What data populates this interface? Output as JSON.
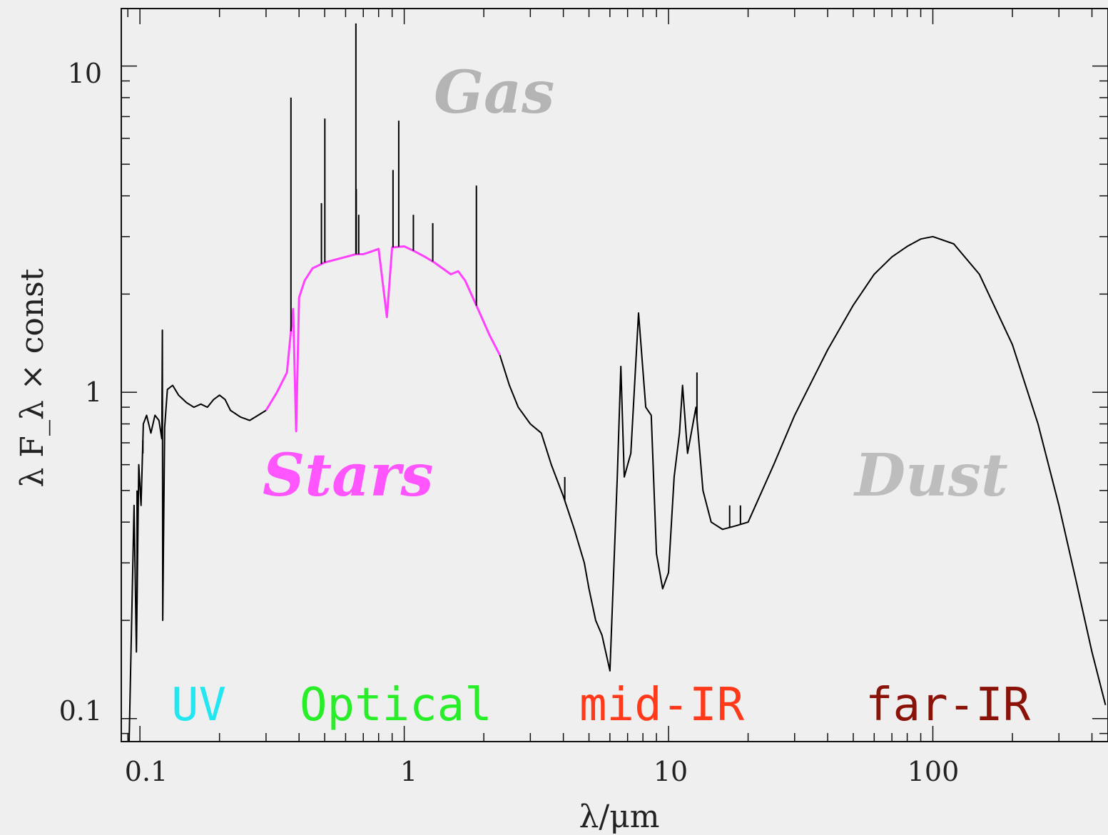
{
  "chart_data": {
    "type": "line",
    "xlabel": "λ/μm",
    "ylabel": "λ F_λ × const",
    "xscale": "log",
    "yscale": "log",
    "xlim": [
      0.085,
      460
    ],
    "ylim": [
      0.085,
      15
    ],
    "grid": false,
    "x_ticks": [
      {
        "value": 0.1,
        "label": "0.1"
      },
      {
        "value": 1,
        "label": "1"
      },
      {
        "value": 10,
        "label": "10"
      },
      {
        "value": 100,
        "label": "100"
      }
    ],
    "y_ticks": [
      {
        "value": 0.1,
        "label": "0.1"
      },
      {
        "value": 1,
        "label": "1"
      },
      {
        "value": 10,
        "label": "10"
      }
    ],
    "series": [
      {
        "name": "",
        "color": "#000000",
        "points": [
          [
            0.091,
            0.085
          ],
          [
            0.095,
            0.45
          ],
          [
            0.097,
            0.16
          ],
          [
            0.099,
            0.6
          ],
          [
            0.101,
            0.45
          ],
          [
            0.103,
            0.8
          ],
          [
            0.106,
            0.85
          ],
          [
            0.11,
            0.75
          ],
          [
            0.114,
            0.85
          ],
          [
            0.118,
            0.82
          ],
          [
            0.121,
            0.72
          ],
          [
            0.1216,
            1.55
          ],
          [
            0.122,
            0.2
          ],
          [
            0.124,
            0.78
          ],
          [
            0.127,
            1.02
          ],
          [
            0.133,
            1.05
          ],
          [
            0.14,
            0.98
          ],
          [
            0.15,
            0.93
          ],
          [
            0.16,
            0.9
          ],
          [
            0.17,
            0.92
          ],
          [
            0.18,
            0.9
          ],
          [
            0.19,
            0.95
          ],
          [
            0.2,
            0.98
          ],
          [
            0.21,
            0.95
          ],
          [
            0.22,
            0.88
          ],
          [
            0.24,
            0.84
          ],
          [
            0.26,
            0.82
          ],
          [
            0.28,
            0.85
          ],
          [
            0.3,
            0.88
          ]
        ]
      },
      {
        "name": "",
        "color": "#ff40ff",
        "points": [
          [
            0.3,
            0.88
          ],
          [
            0.33,
            1.0
          ],
          [
            0.36,
            1.15
          ],
          [
            0.37,
            1.45
          ],
          [
            0.38,
            1.8
          ],
          [
            0.39,
            0.76
          ],
          [
            0.4,
            1.95
          ],
          [
            0.42,
            2.2
          ],
          [
            0.45,
            2.4
          ],
          [
            0.5,
            2.5
          ],
          [
            0.55,
            2.55
          ],
          [
            0.6,
            2.6
          ],
          [
            0.656,
            2.65
          ],
          [
            0.7,
            2.65
          ],
          [
            0.75,
            2.7
          ],
          [
            0.8,
            2.75
          ],
          [
            0.86,
            1.7
          ],
          [
            0.9,
            2.78
          ],
          [
            1.0,
            2.8
          ],
          [
            1.1,
            2.7
          ],
          [
            1.2,
            2.6
          ],
          [
            1.3,
            2.5
          ],
          [
            1.5,
            2.3
          ],
          [
            1.6,
            2.35
          ],
          [
            1.7,
            2.2
          ],
          [
            1.9,
            1.8
          ],
          [
            2.1,
            1.5
          ],
          [
            2.3,
            1.3
          ]
        ]
      },
      {
        "name": "",
        "color": "#000000",
        "points": [
          [
            2.3,
            1.3
          ],
          [
            2.5,
            1.05
          ],
          [
            2.7,
            0.9
          ],
          [
            3.0,
            0.8
          ],
          [
            3.3,
            0.75
          ],
          [
            3.6,
            0.6
          ],
          [
            4.0,
            0.48
          ],
          [
            4.4,
            0.38
          ],
          [
            4.8,
            0.3
          ],
          [
            5.0,
            0.25
          ],
          [
            5.3,
            0.2
          ],
          [
            5.6,
            0.18
          ],
          [
            6.0,
            0.14
          ],
          [
            6.2,
            0.28
          ],
          [
            6.4,
            0.55
          ],
          [
            6.6,
            1.2
          ],
          [
            6.8,
            0.55
          ],
          [
            7.2,
            0.65
          ],
          [
            7.7,
            1.75
          ],
          [
            8.2,
            0.9
          ],
          [
            8.6,
            0.85
          ],
          [
            9.0,
            0.32
          ],
          [
            9.5,
            0.25
          ],
          [
            10.0,
            0.28
          ],
          [
            10.5,
            0.55
          ],
          [
            11.0,
            0.75
          ],
          [
            11.3,
            1.05
          ],
          [
            11.8,
            0.65
          ],
          [
            12.7,
            0.9
          ],
          [
            13.5,
            0.5
          ],
          [
            14.5,
            0.4
          ],
          [
            16.0,
            0.38
          ],
          [
            18.0,
            0.39
          ],
          [
            20.0,
            0.4
          ],
          [
            25.0,
            0.6
          ],
          [
            30.0,
            0.85
          ],
          [
            40.0,
            1.35
          ],
          [
            50.0,
            1.85
          ],
          [
            60.0,
            2.3
          ],
          [
            70.0,
            2.6
          ],
          [
            80.0,
            2.8
          ],
          [
            90.0,
            2.95
          ],
          [
            100.0,
            3.0
          ],
          [
            120.0,
            2.85
          ],
          [
            150.0,
            2.3
          ],
          [
            200.0,
            1.4
          ],
          [
            250.0,
            0.8
          ],
          [
            300.0,
            0.45
          ],
          [
            350.0,
            0.26
          ],
          [
            400.0,
            0.16
          ],
          [
            450.0,
            0.11
          ]
        ]
      }
    ],
    "emission_lines": [
      {
        "x": 0.0975,
        "y": 0.5
      },
      {
        "x": 0.1026,
        "y": 0.65
      },
      {
        "x": 0.1216,
        "y": 1.55
      },
      {
        "x": 0.3727,
        "y": 8.0
      },
      {
        "x": 0.4861,
        "y": 3.8
      },
      {
        "x": 0.5007,
        "y": 6.9
      },
      {
        "x": 0.6563,
        "y": 13.5
      },
      {
        "x": 0.6583,
        "y": 4.2
      },
      {
        "x": 0.6725,
        "y": 3.5
      },
      {
        "x": 0.9069,
        "y": 4.8
      },
      {
        "x": 0.9532,
        "y": 6.8
      },
      {
        "x": 1.083,
        "y": 3.5
      },
      {
        "x": 1.282,
        "y": 3.3
      },
      {
        "x": 1.875,
        "y": 4.3
      },
      {
        "x": 4.05,
        "y": 0.55
      },
      {
        "x": 17.03,
        "y": 0.45
      },
      {
        "x": 18.71,
        "y": 0.45
      },
      {
        "x": 12.81,
        "y": 1.15
      }
    ],
    "component_labels": [
      {
        "text": "Gas",
        "color": "#b4b4b4"
      },
      {
        "text": "Stars",
        "color": "#ff55ff"
      },
      {
        "text": "Dust",
        "color": "#bdbdbd"
      }
    ],
    "band_labels": [
      {
        "text": "UV",
        "color": "#22e6f0"
      },
      {
        "text": "Optical",
        "color": "#28ee28"
      },
      {
        "text": "mid-IR",
        "color": "#ff3a1a"
      },
      {
        "text": "far-IR",
        "color": "#8a1208"
      }
    ]
  }
}
